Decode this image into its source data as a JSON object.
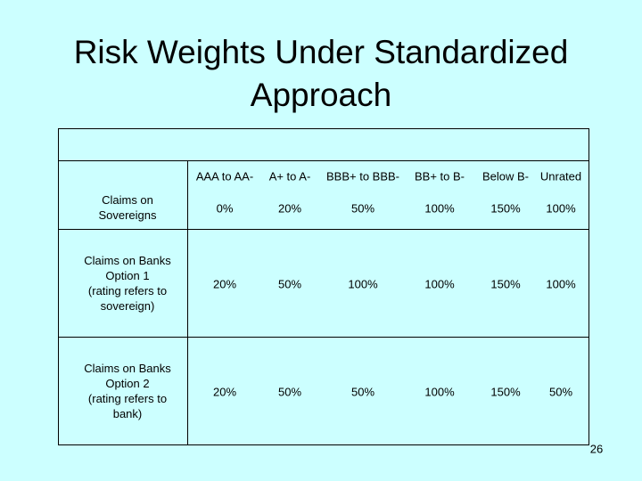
{
  "title": [
    "Risk Weights Under Standardized",
    "Approach"
  ],
  "table": {
    "columns": [
      "AAA to AA-",
      "A+ to A-",
      "BBB+ to BBB-",
      "BB+ to B-",
      "Below B-",
      "Unrated"
    ],
    "rows": [
      {
        "label": [
          "Claims on",
          "Sovereigns"
        ],
        "cells": [
          "0%",
          "20%",
          "50%",
          "100%",
          "150%",
          "100%"
        ]
      },
      {
        "label": [
          "Claims on Banks",
          "Option 1",
          "(rating refers to",
          "sovereign)"
        ],
        "cells": [
          "20%",
          "50%",
          "100%",
          "100%",
          "150%",
          "100%"
        ]
      },
      {
        "label": [
          "Claims on Banks",
          "Option 2",
          "(rating refers to",
          "bank)"
        ],
        "cells": [
          "20%",
          "50%",
          "50%",
          "100%",
          "150%",
          "50%"
        ]
      }
    ]
  },
  "page_number": "26"
}
